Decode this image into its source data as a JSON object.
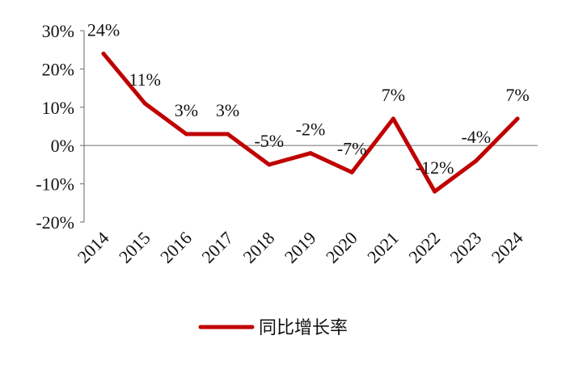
{
  "chart_data": {
    "type": "line",
    "categories": [
      "2014",
      "2015",
      "2016",
      "2017",
      "2018",
      "2019",
      "2020",
      "2021",
      "2022",
      "2023",
      "2024"
    ],
    "series": [
      {
        "name": "同比增长率",
        "values": [
          24,
          11,
          3,
          3,
          -5,
          -2,
          -7,
          7,
          -12,
          -4,
          7
        ],
        "labels": [
          "24%",
          "11%",
          "3%",
          "3%",
          "-5%",
          "-2%",
          "-7%",
          "7%",
          "-12%",
          "-4%",
          "7%"
        ],
        "color": "#c00000"
      }
    ],
    "y_ticks": [
      "30%",
      "20%",
      "10%",
      "0%",
      "-10%",
      "-20%"
    ],
    "y_tick_values": [
      30,
      20,
      10,
      0,
      -10,
      -20
    ],
    "ylim": [
      -20,
      30
    ],
    "grid": false,
    "legend_position": "bottom"
  }
}
